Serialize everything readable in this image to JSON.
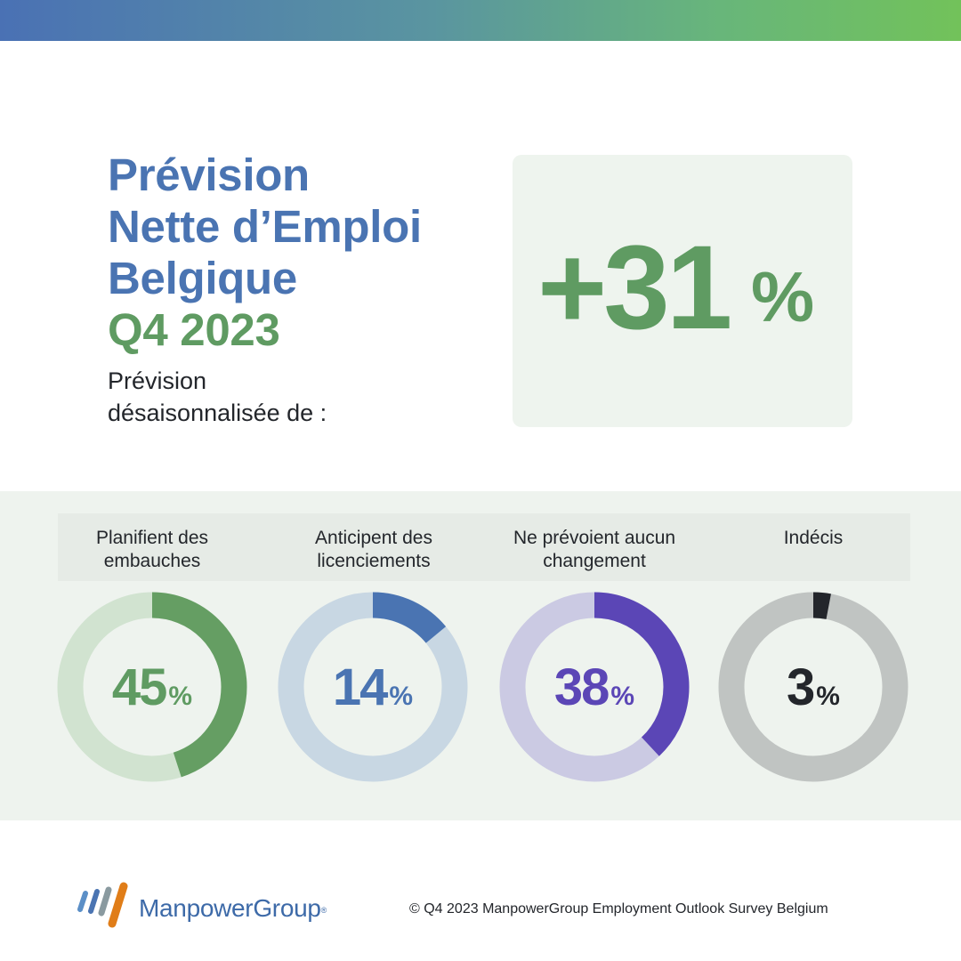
{
  "header": {
    "title_lines": [
      "Prévision",
      "Nette d’Emploi",
      "Belgique"
    ],
    "quarter": "Q4 2023",
    "subtitle_lines": [
      "Prévision",
      "désaisonnalisée de :"
    ]
  },
  "kpi": {
    "value": "+31",
    "unit": "%"
  },
  "chart_data": {
    "type": "pie",
    "series": [
      {
        "label": [
          "Planifient des",
          "embauches"
        ],
        "value": 45,
        "display": "45",
        "unit": "%",
        "color": "#659e63",
        "track_color": "#d1e3d0",
        "text_color": "#5f9b62"
      },
      {
        "label": [
          "Anticipent des",
          "licenciements"
        ],
        "value": 14,
        "display": "14",
        "unit": "%",
        "color": "#4a74b2",
        "track_color": "#c8d7e3",
        "text_color": "#4a74b2"
      },
      {
        "label": [
          "Ne prévoient aucun",
          "changement"
        ],
        "value": 38,
        "display": "38",
        "unit": "%",
        "color": "#5b46b6",
        "track_color": "#cbcae3",
        "text_color": "#5b46b6"
      },
      {
        "label": [
          "Indécis"
        ],
        "value": 3,
        "display": "3",
        "unit": "%",
        "color": "#23262b",
        "track_color": "#c0c4c2",
        "text_color": "#23262b"
      }
    ]
  },
  "footer": {
    "brand": "ManpowerGroup",
    "brand_mark": "®",
    "copyright": "© Q4 2023 ManpowerGroup Employment Outlook Survey Belgium"
  },
  "colors": {
    "title_blue": "#4a74b2",
    "accent_green": "#5f9b62",
    "kpi_background": "#eef4ee",
    "panel_background": "#eef3ee",
    "logo_blue": "#5b8fc7",
    "logo_gray": "#8a9aa0",
    "logo_orange": "#e07d18"
  }
}
